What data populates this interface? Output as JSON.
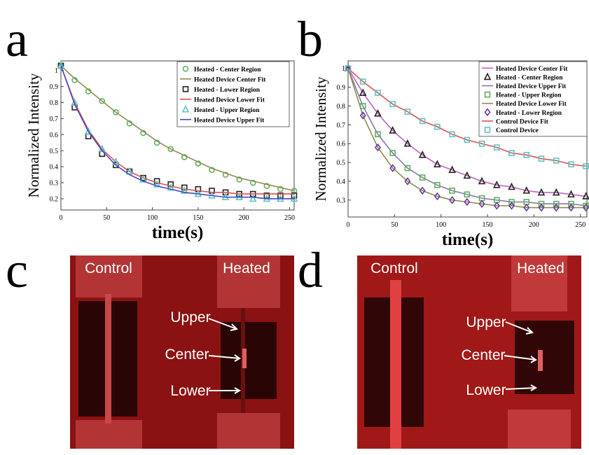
{
  "chart_data": [
    {
      "type": "line",
      "panel": "a",
      "xlabel": "time(s)",
      "ylabel": "Normalized Intensity",
      "x": [
        0,
        15,
        30,
        45,
        60,
        75,
        90,
        105,
        120,
        135,
        150,
        165,
        180,
        195,
        210,
        225,
        240,
        255
      ],
      "xlim": [
        0,
        255
      ],
      "ylim": [
        0.13,
        1.06
      ],
      "xticks": [
        0,
        50,
        100,
        150,
        200,
        250
      ],
      "yticks": [
        0.2,
        0.3,
        0.4,
        0.5,
        0.6,
        0.7,
        0.8,
        0.9,
        1
      ],
      "series": [
        {
          "name": "Heated - Center Region",
          "color": "#5fb05f",
          "marker": "circle",
          "values": [
            1.03,
            0.94,
            0.87,
            0.81,
            0.74,
            0.67,
            0.61,
            0.55,
            0.51,
            0.46,
            0.42,
            0.38,
            0.35,
            0.32,
            0.3,
            0.28,
            0.26,
            0.25
          ]
        },
        {
          "name": "Heated Device Center Fit",
          "color": "#8c8c50",
          "marker": "line",
          "values": [
            1.03,
            0.95,
            0.88,
            0.81,
            0.74,
            0.68,
            0.62,
            0.56,
            0.51,
            0.47,
            0.43,
            0.39,
            0.36,
            0.33,
            0.31,
            0.29,
            0.27,
            0.25
          ]
        },
        {
          "name": "Heated - Lower Region",
          "color": "#222222",
          "marker": "square",
          "values": [
            1.03,
            0.77,
            0.59,
            0.48,
            0.41,
            0.37,
            0.33,
            0.31,
            0.29,
            0.27,
            0.26,
            0.25,
            0.24,
            0.23,
            0.23,
            0.22,
            0.22,
            0.22
          ]
        },
        {
          "name": "Heated Device Lower Fit",
          "color": "#e05050",
          "marker": "line",
          "values": [
            1.03,
            0.8,
            0.63,
            0.51,
            0.43,
            0.37,
            0.33,
            0.3,
            0.28,
            0.26,
            0.25,
            0.24,
            0.24,
            0.23,
            0.23,
            0.23,
            0.23,
            0.23
          ]
        },
        {
          "name": "Heated - Upper Region",
          "color": "#5fc4c4",
          "marker": "triangle",
          "values": [
            1.03,
            0.8,
            0.62,
            0.51,
            0.43,
            0.37,
            0.32,
            0.29,
            0.27,
            0.25,
            0.23,
            0.22,
            0.21,
            0.21,
            0.2,
            0.2,
            0.2,
            0.2
          ]
        },
        {
          "name": "Heated Device Upper Fit",
          "color": "#4848c0",
          "marker": "line",
          "values": [
            1.03,
            0.79,
            0.62,
            0.5,
            0.41,
            0.35,
            0.31,
            0.28,
            0.26,
            0.24,
            0.23,
            0.22,
            0.21,
            0.21,
            0.21,
            0.2,
            0.2,
            0.2
          ]
        }
      ]
    },
    {
      "type": "line",
      "panel": "b",
      "xlabel": "time(s)",
      "ylabel": "Normalized Intensity",
      "x": [
        0,
        16,
        32,
        48,
        64,
        80,
        96,
        112,
        128,
        144,
        160,
        176,
        192,
        208,
        224,
        240,
        256
      ],
      "xlim": [
        0,
        257
      ],
      "ylim": [
        0.21,
        1.04
      ],
      "xticks": [
        0,
        50,
        100,
        150,
        200,
        250
      ],
      "yticks": [
        0.3,
        0.4,
        0.5,
        0.6,
        0.7,
        0.8,
        0.9,
        1
      ],
      "series": [
        {
          "name": "Heated Device Center Fit",
          "color": "#c060c0",
          "marker": "line",
          "values": [
            1.0,
            0.87,
            0.76,
            0.67,
            0.6,
            0.54,
            0.49,
            0.46,
            0.43,
            0.4,
            0.38,
            0.37,
            0.35,
            0.34,
            0.34,
            0.33,
            0.32
          ]
        },
        {
          "name": "Heated - Center Region",
          "color": "#222222",
          "marker": "triangle",
          "values": [
            1.0,
            0.87,
            0.76,
            0.67,
            0.6,
            0.54,
            0.49,
            0.46,
            0.43,
            0.4,
            0.38,
            0.37,
            0.35,
            0.34,
            0.34,
            0.33,
            0.32
          ]
        },
        {
          "name": "Heated Device Upper Fit",
          "color": "#8878a8",
          "marker": "line",
          "values": [
            1.0,
            0.8,
            0.65,
            0.55,
            0.47,
            0.42,
            0.38,
            0.35,
            0.33,
            0.31,
            0.3,
            0.29,
            0.29,
            0.28,
            0.28,
            0.28,
            0.27
          ]
        },
        {
          "name": "Heated - Upper Region",
          "color": "#5fb05f",
          "marker": "square",
          "values": [
            1.0,
            0.8,
            0.65,
            0.55,
            0.47,
            0.42,
            0.38,
            0.35,
            0.33,
            0.31,
            0.3,
            0.29,
            0.29,
            0.28,
            0.28,
            0.28,
            0.27
          ]
        },
        {
          "name": "Heated Device Lower Fit",
          "color": "#8c8c50",
          "marker": "line",
          "values": [
            1.0,
            0.75,
            0.58,
            0.47,
            0.4,
            0.35,
            0.32,
            0.3,
            0.29,
            0.28,
            0.27,
            0.27,
            0.26,
            0.26,
            0.26,
            0.26,
            0.26
          ]
        },
        {
          "name": "Heated - Lower Region",
          "color": "#6a3aa0",
          "marker": "diamond",
          "values": [
            1.0,
            0.75,
            0.58,
            0.47,
            0.4,
            0.35,
            0.32,
            0.3,
            0.29,
            0.28,
            0.27,
            0.27,
            0.26,
            0.26,
            0.26,
            0.26,
            0.26
          ]
        },
        {
          "name": "Control Device Fit",
          "color": "#e05050",
          "marker": "line",
          "values": [
            1.0,
            0.93,
            0.87,
            0.81,
            0.77,
            0.72,
            0.69,
            0.65,
            0.62,
            0.6,
            0.58,
            0.55,
            0.54,
            0.52,
            0.51,
            0.49,
            0.48
          ]
        },
        {
          "name": "Control Device",
          "color": "#5fc4c4",
          "marker": "square",
          "values": [
            1.0,
            0.93,
            0.87,
            0.81,
            0.77,
            0.72,
            0.69,
            0.65,
            0.62,
            0.6,
            0.58,
            0.55,
            0.54,
            0.52,
            0.51,
            0.49,
            0.48
          ]
        }
      ]
    }
  ],
  "images": [
    {
      "panel": "c",
      "labels": [
        "Control",
        "Heated",
        "Upper",
        "Center",
        "Lower"
      ]
    },
    {
      "panel": "d",
      "labels": [
        "Control",
        "Heated",
        "Upper",
        "Center",
        "Lower"
      ]
    }
  ]
}
